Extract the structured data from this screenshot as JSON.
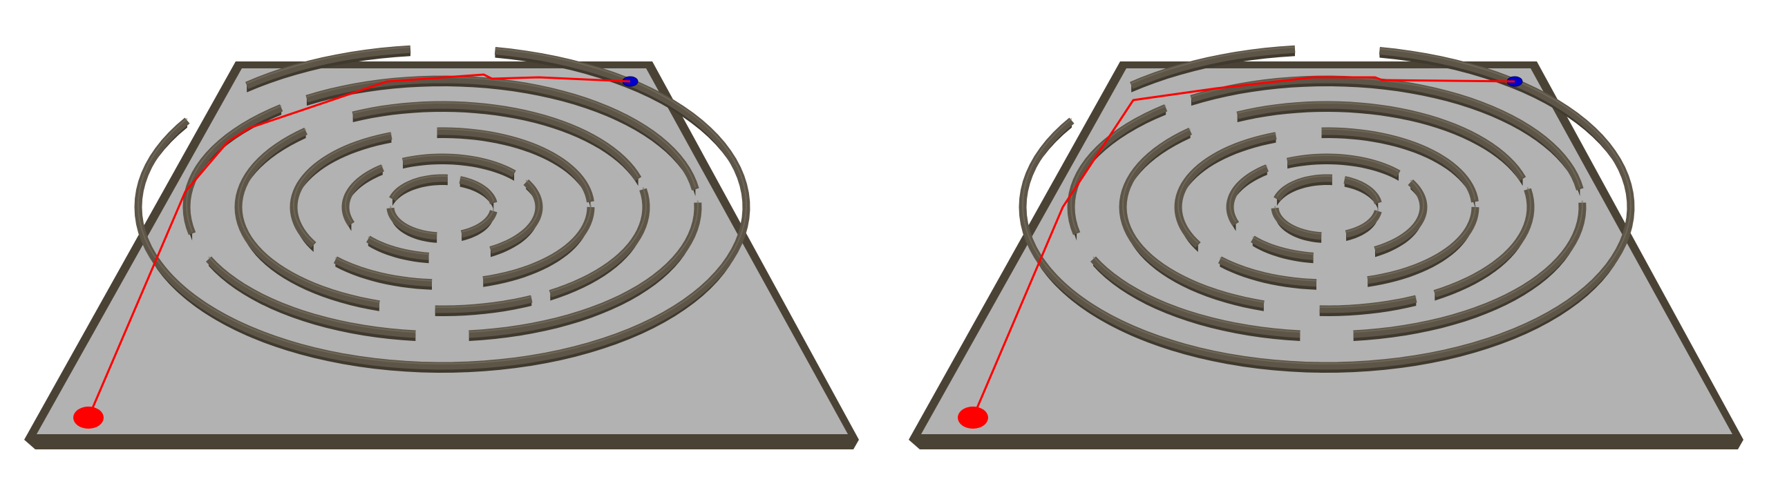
{
  "scene": {
    "description_free": true,
    "panels": [
      {
        "id": "left",
        "start_marker": {
          "color": "#ff0000",
          "kind": "start-marker"
        },
        "goal_marker": {
          "color": "#0000cc",
          "kind": "goal-marker"
        },
        "path": {
          "color": "#ff0000"
        }
      },
      {
        "id": "right",
        "start_marker": {
          "color": "#ff0000",
          "kind": "start-marker"
        },
        "goal_marker": {
          "color": "#0000cc",
          "kind": "goal-marker"
        },
        "path": {
          "color": "#ff0000"
        }
      }
    ],
    "colors": {
      "floor": "#b2b2b2",
      "wall_top": "#5d5547",
      "wall_side": "#3f392e",
      "wall_edge": "#7a7160",
      "background": "#ffffff"
    }
  }
}
